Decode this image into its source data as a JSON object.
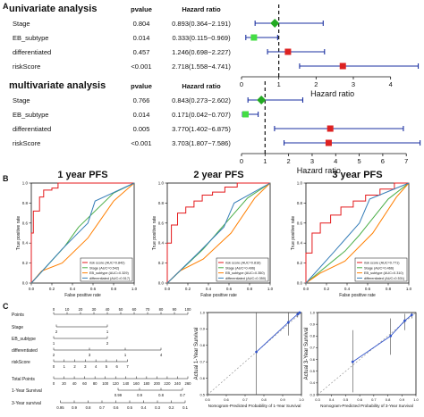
{
  "panels": {
    "A": "A",
    "B": "B",
    "C": "C"
  },
  "forest_headers": {
    "pvalue": "pvalue",
    "hazard_ratio": "Hazard ratio"
  },
  "chart_data": [
    {
      "type": "forest",
      "panel": "A",
      "title": "univariate analysis",
      "xlabel": "Hazard ratio",
      "xlim": [
        0,
        4.8
      ],
      "xticks": [
        0,
        1,
        2,
        3,
        4
      ],
      "reference_line": 1,
      "rows": [
        {
          "label": "Stage",
          "pvalue": "0.804",
          "hr_text": "0.893(0.364−2.191)",
          "hr": 0.893,
          "low": 0.364,
          "high": 2.191,
          "color": "#22aa22"
        },
        {
          "label": "EB_subtype",
          "pvalue": "0.014",
          "hr_text": "0.333(0.115−0.969)",
          "hr": 0.333,
          "low": 0.115,
          "high": 0.969,
          "color": "#44dd44"
        },
        {
          "label": "differentiated",
          "pvalue": "0.457",
          "hr_text": "1.246(0.698−2.227)",
          "hr": 1.246,
          "low": 0.698,
          "high": 2.227,
          "color": "#dd2222"
        },
        {
          "label": "riskScore",
          "pvalue": "<0.001",
          "hr_text": "2.718(1.558−4.741)",
          "hr": 2.718,
          "low": 1.558,
          "high": 4.741,
          "color": "#dd2222"
        }
      ]
    },
    {
      "type": "forest",
      "panel": "A",
      "title": "multivariate analysis",
      "xlabel": "Hazard ratio",
      "xlim": [
        0,
        7.6
      ],
      "xticks": [
        0,
        1,
        2,
        3,
        4,
        5,
        6,
        7
      ],
      "reference_line": 1,
      "rows": [
        {
          "label": "Stage",
          "pvalue": "0.766",
          "hr_text": "0.843(0.273−2.602)",
          "hr": 0.843,
          "low": 0.273,
          "high": 2.602,
          "color": "#22aa22"
        },
        {
          "label": "EB_subtype",
          "pvalue": "0.014",
          "hr_text": "0.171(0.042−0.707)",
          "hr": 0.171,
          "low": 0.042,
          "high": 0.707,
          "color": "#44dd44"
        },
        {
          "label": "differentiated",
          "pvalue": "0.005",
          "hr_text": "3.770(1.402−6.875)",
          "hr": 3.77,
          "low": 1.402,
          "high": 6.875,
          "color": "#dd2222"
        },
        {
          "label": "riskScore",
          "pvalue": "<0.001",
          "hr_text": "3.703(1.807−7.586)",
          "hr": 3.703,
          "low": 1.807,
          "high": 7.586,
          "color": "#dd2222"
        }
      ]
    },
    {
      "type": "line",
      "panel": "B",
      "title": "1 year PFS",
      "xlabel": "False positive rate",
      "ylabel": "True positive rate",
      "xlim": [
        0,
        1
      ],
      "ylim": [
        0,
        1
      ],
      "xticks": [
        "0.0",
        "0.2",
        "0.4",
        "0.6",
        "0.8",
        "1.0"
      ],
      "yticks": [
        "0.0",
        "0.2",
        "0.4",
        "0.6",
        "0.8",
        "1.0"
      ],
      "legend_position": "bottom-right",
      "series": [
        {
          "name": "risk score (AUC=0.842)",
          "color": "#e41a1c",
          "x": [
            0,
            0,
            0.02,
            0.02,
            0.08,
            0.08,
            0.12,
            0.12,
            0.2,
            0.2,
            0.26,
            0.26,
            0.36,
            0.36,
            0.45,
            0.45,
            0.56,
            0.56,
            0.66,
            0.66,
            1
          ],
          "y": [
            0,
            0.5,
            0.5,
            0.72,
            0.72,
            0.86,
            0.86,
            0.93,
            0.93,
            0.95,
            0.95,
            1,
            1,
            1,
            1,
            1,
            1,
            1,
            1,
            1,
            1
          ]
        },
        {
          "name": "Stage (AUC=0.542)",
          "color": "#4daf4a",
          "x": [
            0,
            0.32,
            0.46,
            0.8,
            1
          ],
          "y": [
            0,
            0.36,
            0.56,
            0.9,
            1
          ]
        },
        {
          "name": "EB_subtype (AUC=0.329)",
          "color": "#ff7f00",
          "x": [
            0,
            0.1,
            0.3,
            0.55,
            0.8,
            1
          ],
          "y": [
            0,
            0.12,
            0.2,
            0.45,
            0.82,
            1
          ]
        },
        {
          "name": "differentiated (AUC=0.517)",
          "color": "#377eb8",
          "x": [
            0,
            0.3,
            0.55,
            0.62,
            1
          ],
          "y": [
            0,
            0.34,
            0.6,
            0.82,
            1
          ]
        }
      ]
    },
    {
      "type": "line",
      "panel": "B",
      "title": "2 year PFS",
      "xlabel": "False positive rate",
      "ylabel": "True positive rate",
      "xlim": [
        0,
        1
      ],
      "ylim": [
        0,
        1
      ],
      "xticks": [
        "0.0",
        "0.2",
        "0.4",
        "0.6",
        "0.8",
        "1.0"
      ],
      "yticks": [
        "0.0",
        "0.2",
        "0.4",
        "0.6",
        "0.8",
        "1.0"
      ],
      "legend_position": "bottom-right",
      "series": [
        {
          "name": "risk score (AUC=0.816)",
          "color": "#e41a1c",
          "x": [
            0,
            0,
            0.04,
            0.04,
            0.1,
            0.1,
            0.18,
            0.18,
            0.26,
            0.26,
            0.34,
            0.34,
            0.44,
            0.44,
            0.56,
            0.56,
            0.68,
            0.68,
            1
          ],
          "y": [
            0,
            0.4,
            0.4,
            0.58,
            0.58,
            0.7,
            0.7,
            0.76,
            0.76,
            0.82,
            0.82,
            0.88,
            0.88,
            0.91,
            0.91,
            0.96,
            0.96,
            1,
            1
          ]
        },
        {
          "name": "Stage (AUC=0.496)",
          "color": "#4daf4a",
          "x": [
            0,
            0.35,
            0.5,
            0.78,
            1
          ],
          "y": [
            0,
            0.34,
            0.52,
            0.85,
            1
          ]
        },
        {
          "name": "EB_subtype (AUC=0.350)",
          "color": "#ff7f00",
          "x": [
            0,
            0.12,
            0.35,
            0.62,
            0.85,
            1
          ],
          "y": [
            0,
            0.12,
            0.24,
            0.5,
            0.85,
            1
          ]
        },
        {
          "name": "differentiated (AUC=0.350)",
          "color": "#377eb8",
          "x": [
            0,
            0.3,
            0.55,
            0.65,
            1
          ],
          "y": [
            0,
            0.3,
            0.56,
            0.8,
            1
          ]
        }
      ]
    },
    {
      "type": "line",
      "panel": "B",
      "title": "3 year PFS",
      "xlabel": "False positive rate",
      "ylabel": "True positive rate",
      "xlim": [
        0,
        1
      ],
      "ylim": [
        0,
        1
      ],
      "xticks": [
        "0.0",
        "0.2",
        "0.4",
        "0.6",
        "0.8",
        "1.0"
      ],
      "yticks": [
        "0.0",
        "0.2",
        "0.4",
        "0.6",
        "0.8",
        "1.0"
      ],
      "legend_position": "bottom-right",
      "series": [
        {
          "name": "risk score (AUC=0.771)",
          "color": "#e41a1c",
          "x": [
            0,
            0,
            0.06,
            0.06,
            0.14,
            0.14,
            0.24,
            0.24,
            0.34,
            0.34,
            0.46,
            0.46,
            0.58,
            0.58,
            0.72,
            0.72,
            0.86,
            0.86,
            1
          ],
          "y": [
            0,
            0.3,
            0.3,
            0.5,
            0.5,
            0.6,
            0.6,
            0.68,
            0.68,
            0.76,
            0.76,
            0.82,
            0.82,
            0.88,
            0.88,
            0.94,
            0.94,
            1,
            1
          ]
        },
        {
          "name": "Stage (AUC=0.466)",
          "color": "#4daf4a",
          "x": [
            0,
            0.38,
            0.52,
            0.8,
            1
          ],
          "y": [
            0,
            0.32,
            0.48,
            0.84,
            1
          ]
        },
        {
          "name": "EB_subtype (AUC=0.310)",
          "color": "#ff7f00",
          "x": [
            0,
            0.14,
            0.38,
            0.65,
            0.88,
            1
          ],
          "y": [
            0,
            0.1,
            0.22,
            0.5,
            0.86,
            1
          ]
        },
        {
          "name": "differentiated (AUC=0.531)",
          "color": "#377eb8",
          "x": [
            0,
            0.28,
            0.52,
            0.62,
            1
          ],
          "y": [
            0,
            0.32,
            0.6,
            0.84,
            1
          ]
        }
      ]
    },
    {
      "type": "nomogram",
      "panel": "C",
      "rows": [
        {
          "label": "Points",
          "ticks": [
            "0",
            "10",
            "20",
            "30",
            "40",
            "50",
            "60",
            "70",
            "80",
            "90",
            "100"
          ]
        },
        {
          "label": "Stage",
          "ticks": [
            "2",
            "1"
          ]
        },
        {
          "label": "EB_subtype",
          "ticks": [
            "1",
            "2"
          ]
        },
        {
          "label": "differentiated",
          "ticks": [
            "2",
            "3",
            "1",
            "4"
          ]
        },
        {
          "label": "riskScore",
          "ticks": [
            "0",
            "1",
            "2",
            "3",
            "4",
            "5",
            "6",
            "7"
          ]
        },
        {
          "label": "Total Points",
          "ticks": [
            "0",
            "20",
            "40",
            "60",
            "80",
            "100",
            "120",
            "140",
            "160",
            "180",
            "200",
            "220",
            "240",
            "260"
          ]
        },
        {
          "label": "1-Year Survival",
          "ticks": [
            "0.99",
            "0.9",
            "0.8",
            "0.7"
          ]
        },
        {
          "label": "3-Year survival",
          "ticks": [
            "0.95",
            "0.9",
            "0.8",
            "0.7",
            "0.6",
            "0.5",
            "0.4",
            "0.3",
            "0.2",
            "0.1"
          ]
        }
      ]
    },
    {
      "type": "scatter",
      "panel": "C",
      "xlabel": "Nomogram-Predicted Probability of 1-Year Survival",
      "ylabel": "Actual 1-Year Survival",
      "xlim": [
        0.5,
        1.0
      ],
      "ylim": [
        0.5,
        1.0
      ],
      "xticks": [
        "0.5",
        "0.6",
        "0.7",
        "0.8",
        "0.9",
        "1.0"
      ],
      "yticks": [
        "0.5",
        "0.6",
        "0.7",
        "0.8",
        "0.9",
        "1.0"
      ],
      "points": [
        {
          "x": 0.76,
          "y": 0.76,
          "low": 0.5,
          "high": 1.0
        },
        {
          "x": 0.93,
          "y": 0.94,
          "low": 0.86,
          "high": 1.0
        },
        {
          "x": 0.98,
          "y": 0.99,
          "low": 0.97,
          "high": 1.0
        },
        {
          "x": 0.99,
          "y": 1.0,
          "low": 0.99,
          "high": 1.0
        }
      ]
    },
    {
      "type": "scatter",
      "panel": "C",
      "xlabel": "Nomogram-Predicted Probability of 3-Year Survival",
      "ylabel": "Actual 3-Year Survival",
      "xlim": [
        0.3,
        1.0
      ],
      "ylim": [
        0.3,
        1.0
      ],
      "xticks": [
        "0.3",
        "0.4",
        "0.5",
        "0.6",
        "0.7",
        "0.8",
        "0.9",
        "1.0"
      ],
      "yticks": [
        "0.3",
        "0.4",
        "0.5",
        "0.6",
        "0.7",
        "0.8",
        "0.9",
        "1.0"
      ],
      "points": [
        {
          "x": 0.55,
          "y": 0.58,
          "low": 0.32,
          "high": 0.85
        },
        {
          "x": 0.82,
          "y": 0.8,
          "low": 0.64,
          "high": 0.95
        },
        {
          "x": 0.92,
          "y": 0.93,
          "low": 0.85,
          "high": 0.99
        },
        {
          "x": 0.97,
          "y": 0.98,
          "low": 0.95,
          "high": 1.0
        }
      ]
    }
  ]
}
